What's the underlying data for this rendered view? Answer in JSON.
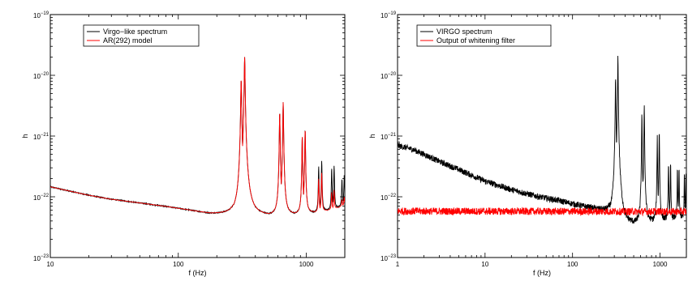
{
  "chart_data": [
    {
      "type": "line",
      "xscale": "log",
      "yscale": "log",
      "xlim": [
        10,
        2000
      ],
      "ylim": [
        1e-23,
        1e-19
      ],
      "xlabel": "f (Hz)",
      "ylabel": "h",
      "x_ticks": [
        {
          "value": 10,
          "label": "10"
        },
        {
          "value": 100,
          "label": "100"
        },
        {
          "value": 1000,
          "label": "1000"
        }
      ],
      "y_ticks": [
        {
          "value": 1e-23,
          "base": "10",
          "exp": "−23"
        },
        {
          "value": 1e-22,
          "base": "10",
          "exp": "−22"
        },
        {
          "value": 1e-21,
          "base": "10",
          "exp": "−21"
        },
        {
          "value": 1e-20,
          "base": "10",
          "exp": "−20"
        },
        {
          "value": 1e-19,
          "base": "10",
          "exp": "−19"
        }
      ],
      "legend_position": "top-left",
      "series": [
        {
          "name": "Virgo−like spectrum",
          "color": "#000000",
          "baseline": [
            [
              10,
              1.45e-22
            ],
            [
              15,
              1.2e-22
            ],
            [
              20,
              1.05e-22
            ],
            [
              30,
              9e-23
            ],
            [
              50,
              7.8e-23
            ],
            [
              80,
              6.8e-23
            ],
            [
              120,
              5.9e-23
            ],
            [
              180,
              5e-23
            ],
            [
              250,
              4.7e-23
            ],
            [
              320,
              5e-23
            ],
            [
              500,
              5e-23
            ],
            [
              800,
              5.2e-23
            ],
            [
              1200,
              5.6e-23
            ],
            [
              1600,
              6.2e-23
            ],
            [
              2000,
              7.3e-23
            ]
          ],
          "peaks": [
            [
              310,
              8.5e-21
            ],
            [
              330,
              2e-20
            ],
            [
              620,
              2.5e-21
            ],
            [
              660,
              3.6e-21
            ],
            [
              930,
              1e-21
            ],
            [
              980,
              1.3e-21
            ],
            [
              1250,
              3.2e-22
            ],
            [
              1320,
              4e-22
            ],
            [
              1580,
              3e-22
            ],
            [
              1650,
              3.3e-22
            ],
            [
              1900,
              2e-22
            ],
            [
              1980,
              2.3e-22
            ]
          ]
        },
        {
          "name": "AR(292) model",
          "color": "#ff0000",
          "baseline": [
            [
              10,
              1.45e-22
            ],
            [
              15,
              1.2e-22
            ],
            [
              20,
              1.05e-22
            ],
            [
              30,
              9e-23
            ],
            [
              50,
              7.8e-23
            ],
            [
              80,
              6.8e-23
            ],
            [
              120,
              5.9e-23
            ],
            [
              180,
              5e-23
            ],
            [
              250,
              4.7e-23
            ],
            [
              320,
              5e-23
            ],
            [
              500,
              5e-23
            ],
            [
              800,
              5.2e-23
            ],
            [
              1200,
              5.6e-23
            ],
            [
              1600,
              6.2e-23
            ],
            [
              2000,
              7.3e-23
            ]
          ],
          "peaks": [
            [
              310,
              8.5e-21
            ],
            [
              330,
              2e-20
            ],
            [
              620,
              2.5e-21
            ],
            [
              660,
              3.6e-21
            ],
            [
              930,
              1e-21
            ],
            [
              980,
              1.3e-21
            ],
            [
              1250,
              2e-22
            ],
            [
              1320,
              2.5e-22
            ],
            [
              1580,
              1.2e-22
            ],
            [
              1650,
              1.3e-22
            ],
            [
              1900,
              9e-23
            ],
            [
              1980,
              1e-22
            ]
          ]
        }
      ]
    },
    {
      "type": "line",
      "xscale": "log",
      "yscale": "log",
      "xlim": [
        1,
        2000
      ],
      "ylim": [
        1e-23,
        1e-19
      ],
      "xlabel": "f (Hz)",
      "ylabel": "h",
      "x_ticks": [
        {
          "value": 1,
          "label": "1"
        },
        {
          "value": 10,
          "label": "10"
        },
        {
          "value": 100,
          "label": "100"
        },
        {
          "value": 1000,
          "label": "1000"
        }
      ],
      "y_ticks": [
        {
          "value": 1e-23,
          "base": "10",
          "exp": "−23"
        },
        {
          "value": 1e-22,
          "base": "10",
          "exp": "−22"
        },
        {
          "value": 1e-21,
          "base": "10",
          "exp": "−21"
        },
        {
          "value": 1e-20,
          "base": "10",
          "exp": "−20"
        },
        {
          "value": 1e-19,
          "base": "10",
          "exp": "−19"
        }
      ],
      "legend_position": "top-left",
      "series": [
        {
          "name": "VIRGO spectrum",
          "color": "#000000",
          "baseline": [
            [
              1,
              7e-22
            ],
            [
              1.5,
              6e-22
            ],
            [
              2,
              5e-22
            ],
            [
              3,
              3.8e-22
            ],
            [
              5,
              2.8e-22
            ],
            [
              10,
              1.8e-22
            ],
            [
              20,
              1.3e-22
            ],
            [
              40,
              1e-22
            ],
            [
              70,
              8.5e-23
            ],
            [
              100,
              7.5e-23
            ],
            [
              150,
              6.5e-23
            ],
            [
              200,
              5.8e-23
            ],
            [
              260,
              5e-23
            ],
            [
              320,
              4.6e-23
            ],
            [
              400,
              3.5e-23
            ],
            [
              600,
              3.8e-23
            ],
            [
              1000,
              4.2e-23
            ],
            [
              1500,
              4.5e-23
            ],
            [
              2000,
              4.5e-23
            ]
          ],
          "peaks": [
            [
              310,
              8.5e-21
            ],
            [
              330,
              2e-20
            ],
            [
              620,
              2.5e-21
            ],
            [
              660,
              3.6e-21
            ],
            [
              930,
              1e-21
            ],
            [
              980,
              1.3e-21
            ],
            [
              1250,
              4e-22
            ],
            [
              1320,
              3.5e-22
            ],
            [
              1580,
              3e-22
            ],
            [
              1650,
              3e-22
            ],
            [
              1900,
              2.5e-22
            ],
            [
              1980,
              2.2e-22
            ]
          ]
        },
        {
          "name": "Output of whitening filter",
          "color": "#ff0000",
          "baseline": [
            [
              1,
              5.8e-23
            ],
            [
              2000,
              5.7e-23
            ]
          ],
          "peaks": []
        }
      ]
    }
  ]
}
